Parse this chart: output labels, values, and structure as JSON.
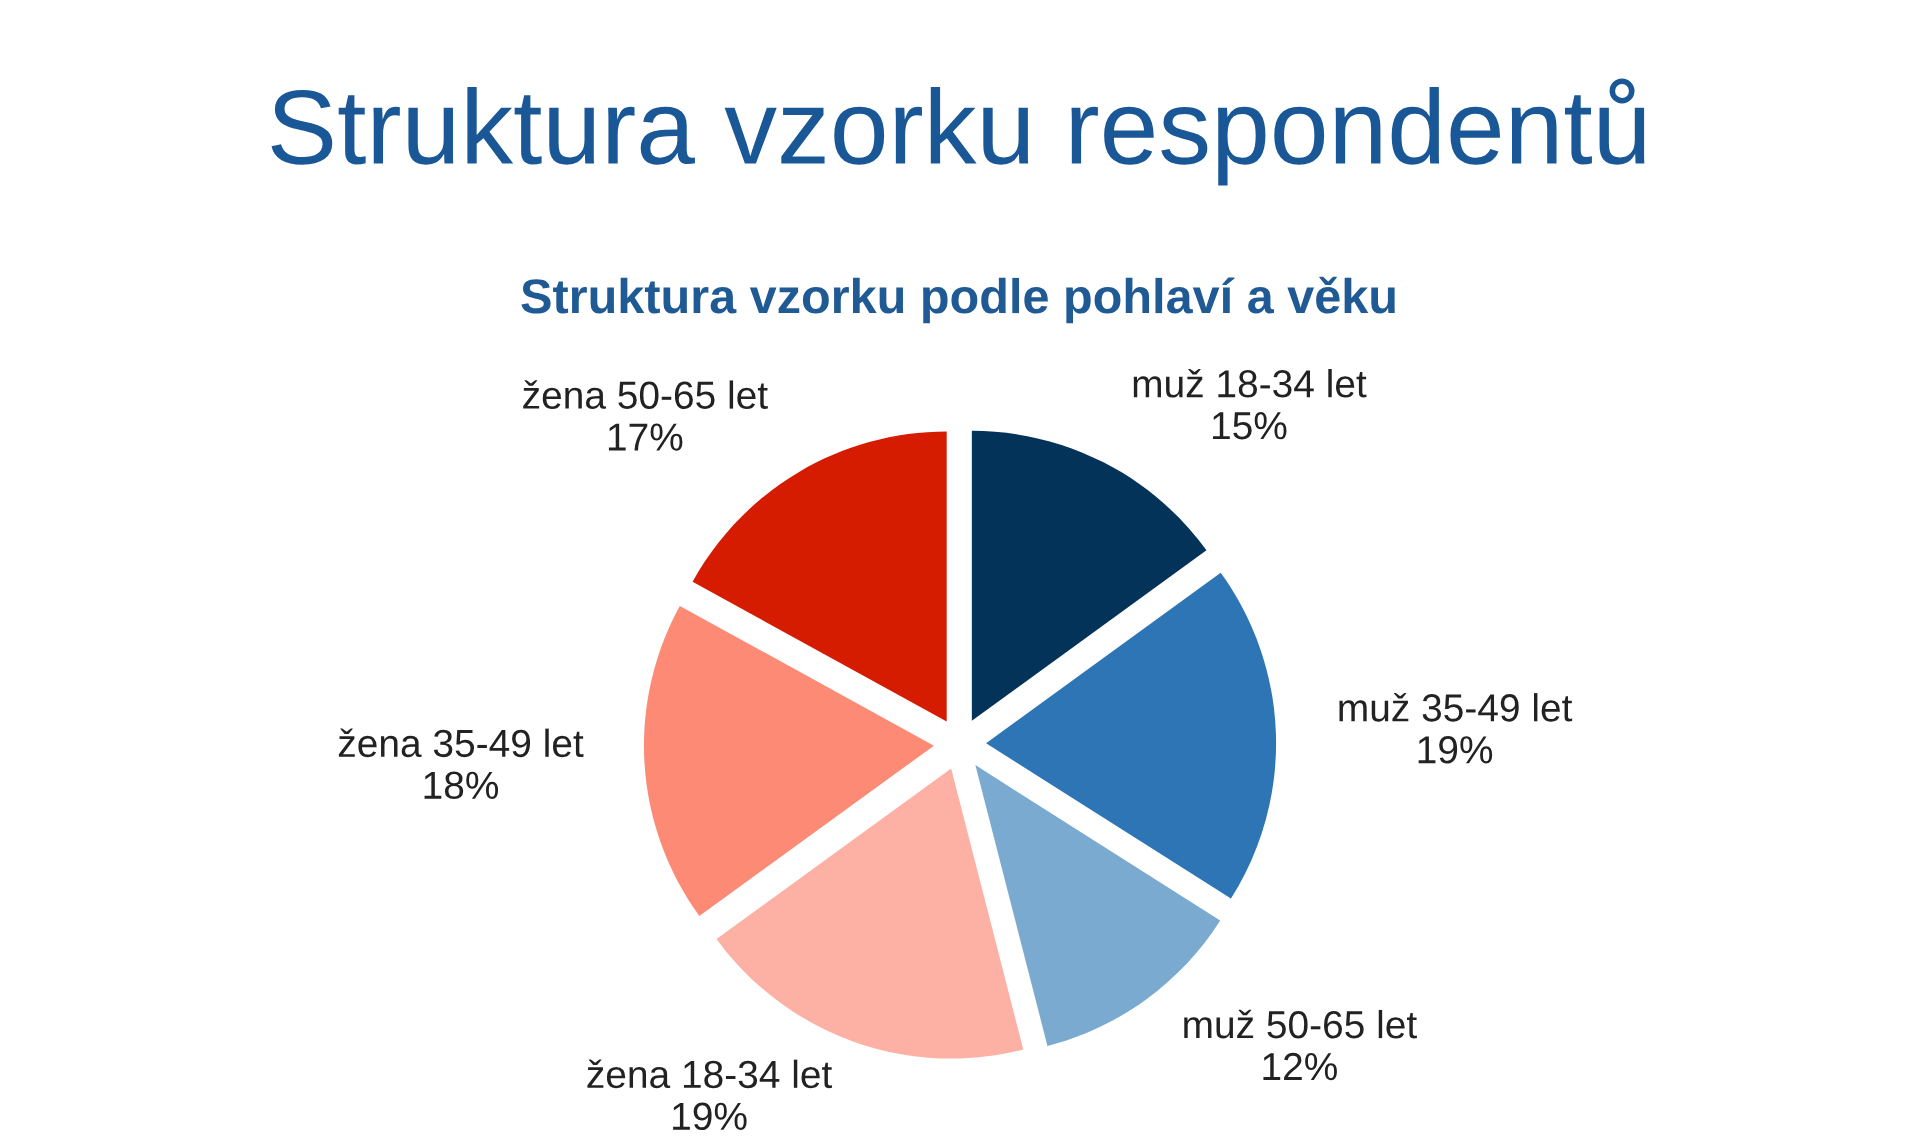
{
  "chart_data": {
    "type": "pie",
    "title": "Struktura vzorku respondentů",
    "subtitle": "Struktura vzorku podle pohlaví a věku",
    "categories": [
      "muž 18-34 let",
      "muž 35-49 let",
      "muž 50-65 let",
      "žena 18-34 let",
      "žena 35-49 let",
      "žena 50-65 let"
    ],
    "values": [
      15,
      19,
      12,
      19,
      18,
      17
    ],
    "colors": [
      "#04335a",
      "#2e75b6",
      "#7aaacf",
      "#fdb0a4",
      "#fd8a74",
      "#d61c00"
    ],
    "value_labels": [
      "15%",
      "19%",
      "12%",
      "19%",
      "18%",
      "17%"
    ]
  }
}
